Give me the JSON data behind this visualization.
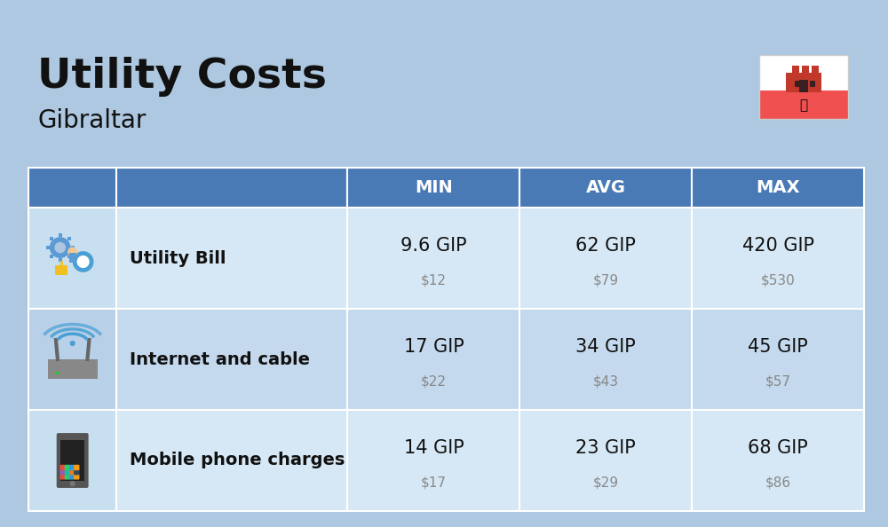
{
  "title": "Utility Costs",
  "subtitle": "Gibraltar",
  "background_color": "#adc8e0",
  "header_bg_color": "#4a7ab5",
  "header_text_color": "#ffffff",
  "border_color": "#ffffff",
  "columns": [
    "MIN",
    "AVG",
    "MAX"
  ],
  "rows": [
    {
      "label": "Utility Bill",
      "min_gip": "9.6 GIP",
      "min_usd": "$12",
      "avg_gip": "62 GIP",
      "avg_usd": "$79",
      "max_gip": "420 GIP",
      "max_usd": "$530"
    },
    {
      "label": "Internet and cable",
      "min_gip": "17 GIP",
      "min_usd": "$22",
      "avg_gip": "34 GIP",
      "avg_usd": "$43",
      "max_gip": "45 GIP",
      "max_usd": "$57"
    },
    {
      "label": "Mobile phone charges",
      "min_gip": "14 GIP",
      "min_usd": "$17",
      "avg_gip": "23 GIP",
      "avg_usd": "$29",
      "max_gip": "68 GIP",
      "max_usd": "$86"
    }
  ],
  "row_bg_odd": "#d6e8f5",
  "row_bg_even": "#c4d9ed",
  "icon_bg_odd": "#c8dff0",
  "icon_bg_even": "#b8d0e8",
  "value_fontsize": 15,
  "usd_fontsize": 11,
  "label_fontsize": 14,
  "header_fontsize": 14
}
